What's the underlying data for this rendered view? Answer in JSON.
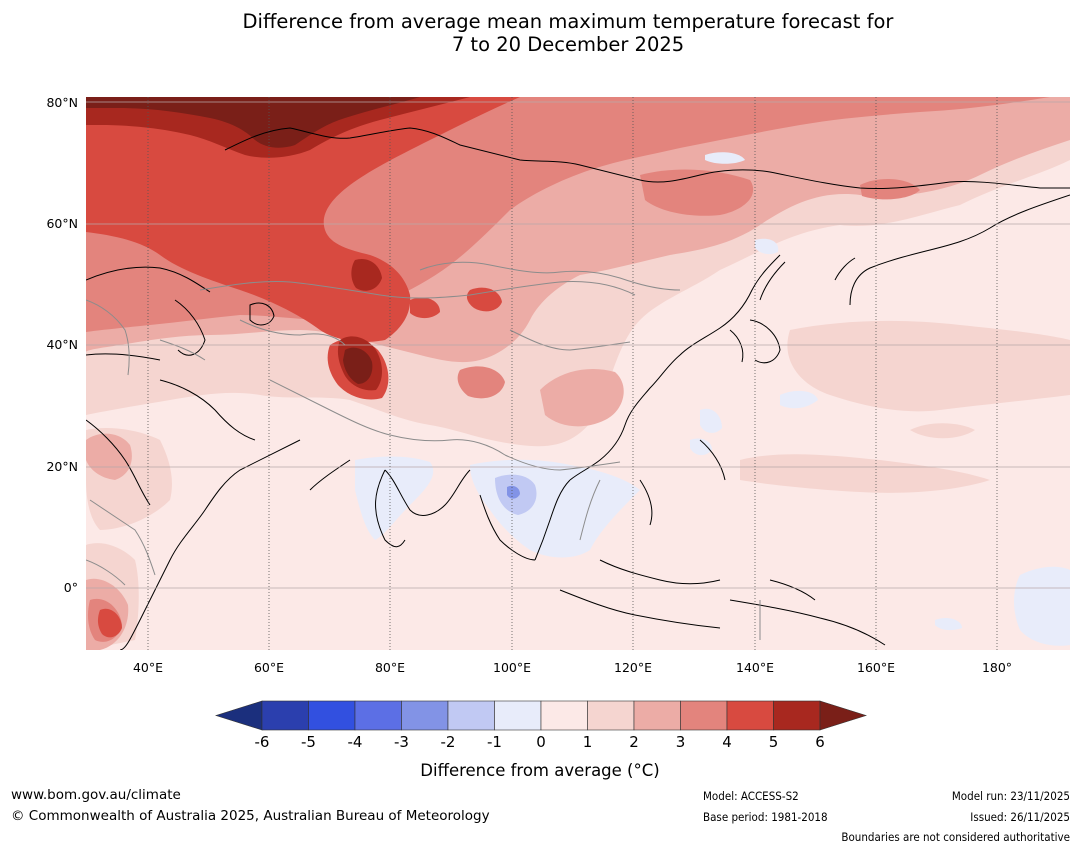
{
  "title": {
    "line1": "Difference from average mean maximum temperature forecast for",
    "line2": "7 to 20 December 2025"
  },
  "map": {
    "latitude_labels": [
      "80°N",
      "60°N",
      "40°N",
      "20°N",
      "0°"
    ],
    "longitude_labels": [
      "40°E",
      "60°E",
      "80°E",
      "100°E",
      "120°E",
      "140°E",
      "160°E",
      "180°"
    ],
    "colors": {
      "anomaly_1_to_2": "#f5d5d0",
      "anomaly_2_to_3": "#ecaca6",
      "anomaly_3_to_4": "#e3847d",
      "anomaly_4_to_5": "#d84a40",
      "anomaly_5_to_6": "#a8281f",
      "anomaly_above_6": "#7a1f18",
      "anomaly_0_to_1": "#fce9e7",
      "anomaly_minus1_to_0": "#e8ecfa",
      "anomaly_minus2_to_minus1": "#c1c9f3",
      "anomaly_minus3_to_minus2": "#8293e6",
      "coastline": "#000000",
      "country_border": "#8c8c8c"
    }
  },
  "colorbar": {
    "tick_labels": [
      "-6",
      "-5",
      "-4",
      "-3",
      "-2",
      "-1",
      "0",
      "1",
      "2",
      "3",
      "4",
      "5",
      "6"
    ],
    "colors": [
      "#1b2f7d",
      "#2b3fae",
      "#3250e0",
      "#5c6fe5",
      "#8293e6",
      "#c1c9f3",
      "#e8ecfa",
      "#fce9e7",
      "#f5d5d0",
      "#ecaca6",
      "#e3847d",
      "#d84a40",
      "#a8281f",
      "#7a1f18"
    ],
    "label": "Difference from average (°C)"
  },
  "footer": {
    "url": "www.bom.gov.au/climate",
    "copyright": "© Commonwealth of Australia 2025, Australian Bureau of Meteorology",
    "model": "Model: ACCESS-S2",
    "base_period": "Base period: 1981-2018",
    "model_run": "Model run: 23/11/2025",
    "issued": "Issued: 26/11/2025",
    "disclaimer": "Boundaries are not considered authoritative"
  }
}
